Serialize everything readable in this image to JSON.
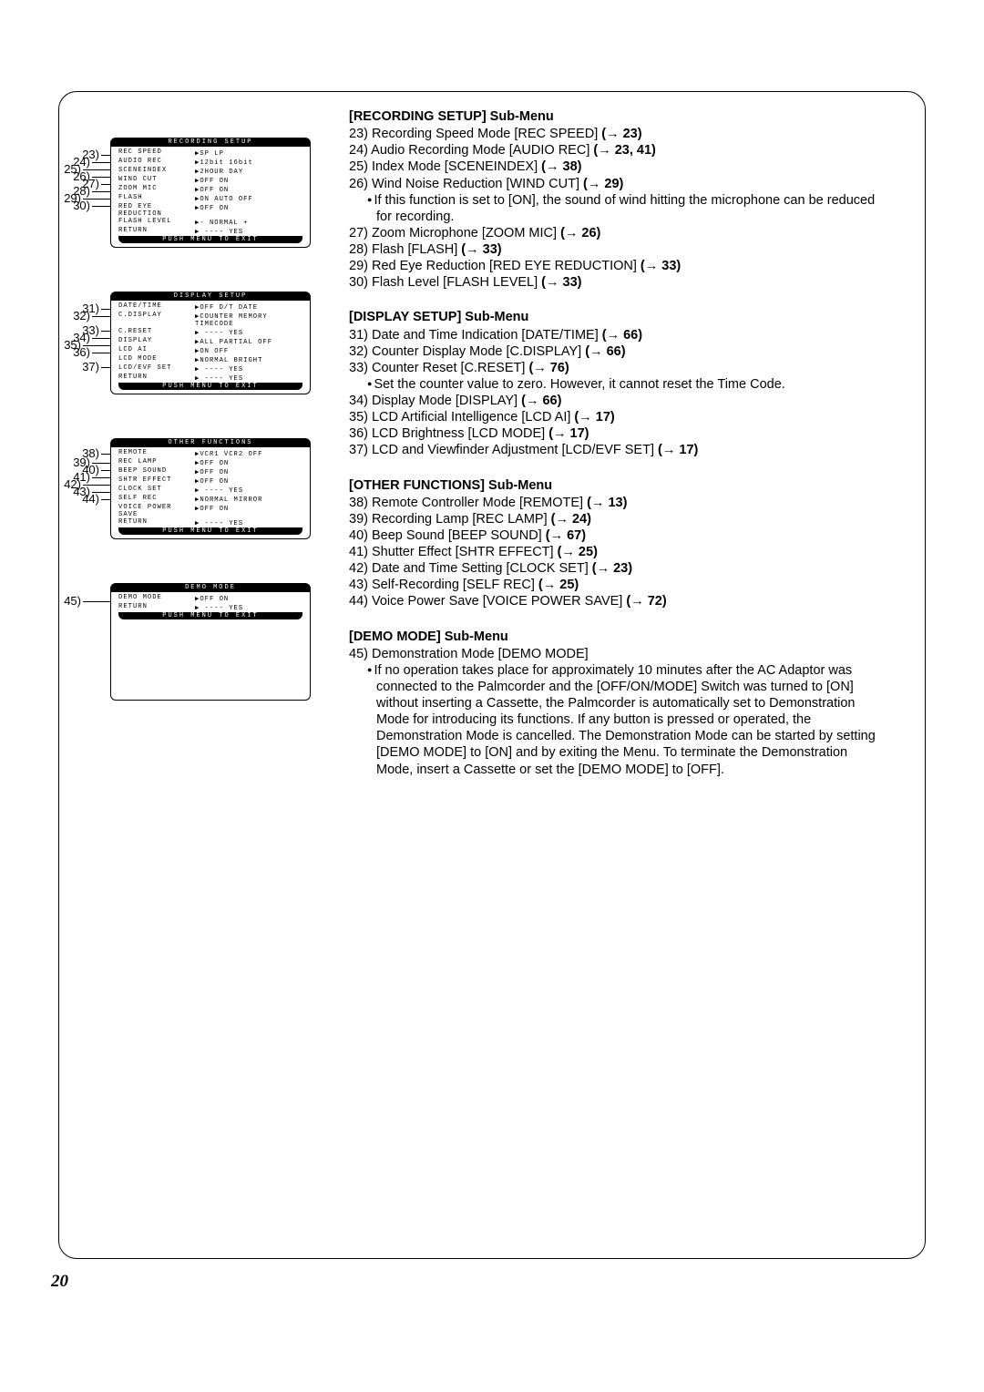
{
  "sections": [
    {
      "title": "[RECORDING SETUP] Sub-Menu",
      "items": [
        {
          "n": "23)",
          "t": "Recording Speed Mode [REC SPEED]",
          "r": "(→ 23)"
        },
        {
          "n": "24)",
          "t": "Audio Recording Mode [AUDIO REC]",
          "r": "(→ 23, 41)"
        },
        {
          "n": "25)",
          "t": "Index Mode [SCENEINDEX]",
          "r": "(→ 38)"
        },
        {
          "n": "26)",
          "t": "Wind Noise Reduction [WIND CUT]",
          "r": "(→ 29)",
          "sub": "If this function is set to [ON], the sound of wind hitting the microphone can be reduced for recording."
        },
        {
          "n": "27)",
          "t": "Zoom Microphone [ZOOM MIC]",
          "r": "(→ 26)"
        },
        {
          "n": "28)",
          "t": "Flash [FLASH]",
          "r": "(→ 33)"
        },
        {
          "n": "29)",
          "t": "Red Eye Reduction [RED EYE REDUCTION]",
          "r": "(→ 33)"
        },
        {
          "n": "30)",
          "t": "Flash Level [FLASH LEVEL]",
          "r": "(→ 33)"
        }
      ]
    },
    {
      "title": "[DISPLAY SETUP] Sub-Menu",
      "items": [
        {
          "n": "31)",
          "t": "Date and Time Indication [DATE/TIME]",
          "r": "(→ 66)"
        },
        {
          "n": "32)",
          "t": "Counter Display Mode [C.DISPLAY]",
          "r": "(→ 66)"
        },
        {
          "n": "33)",
          "t": "Counter Reset [C.RESET]",
          "r": "(→ 76)",
          "sub": "Set the counter value to zero. However, it cannot reset the Time Code."
        },
        {
          "n": "34)",
          "t": "Display Mode [DISPLAY]",
          "r": "(→ 66)"
        },
        {
          "n": "35)",
          "t": "LCD Artificial Intelligence [LCD AI]",
          "r": "(→ 17)"
        },
        {
          "n": "36)",
          "t": "LCD Brightness [LCD MODE]",
          "r": "(→ 17)"
        },
        {
          "n": "37)",
          "t": "LCD and Viewfinder Adjustment [LCD/EVF SET]",
          "r": "(→ 17)"
        }
      ]
    },
    {
      "title": "[OTHER FUNCTIONS] Sub-Menu",
      "items": [
        {
          "n": "38)",
          "t": "Remote Controller Mode [REMOTE]",
          "r": "(→ 13)"
        },
        {
          "n": "39)",
          "t": "Recording Lamp [REC LAMP]",
          "r": "(→ 24)"
        },
        {
          "n": "40)",
          "t": "Beep Sound [BEEP SOUND]",
          "r": "(→ 67)"
        },
        {
          "n": "41)",
          "t": "Shutter Effect [SHTR EFFECT]",
          "r": "(→ 25)"
        },
        {
          "n": "42)",
          "t": "Date and Time Setting [CLOCK SET]",
          "r": "(→ 23)"
        },
        {
          "n": "43)",
          "t": "Self-Recording [SELF REC]",
          "r": "(→ 25)"
        },
        {
          "n": "44)",
          "t": "Voice Power Save [VOICE POWER SAVE]",
          "r": "(→ 72)"
        }
      ]
    },
    {
      "title": "[DEMO MODE] Sub-Menu",
      "items": [
        {
          "n": "45)",
          "t": "Demonstration Mode [DEMO MODE]",
          "r": "",
          "sub": "If no operation takes place for approximately 10 minutes after the AC Adaptor was connected to the Palmcorder and the [OFF/ON/MODE] Switch was turned to [ON] without inserting a Cassette, the Palmcorder is automatically set to Demonstration Mode for introducing its functions. If any button is pressed or operated, the Demonstration Mode is cancelled. The Demonstration Mode can be started by setting [DEMO MODE] to [ON] and by exiting the Menu. To terminate the Demonstration Mode, insert a Cassette or set the [DEMO MODE] to [OFF]."
        }
      ]
    }
  ],
  "menus": [
    {
      "title": "RECORDING SETUP",
      "rows": [
        {
          "c1": "REC SPEED",
          "c3": "▶SP     LP"
        },
        {
          "c1": "AUDIO REC",
          "c3": "▶12bit  16bit"
        },
        {
          "c1": "SCENEINDEX",
          "c3": "▶2HOUR  DAY"
        },
        {
          "c1": "WIND CUT",
          "c3": "▶OFF    ON"
        },
        {
          "c1": "ZOOM MIC",
          "c3": "▶OFF    ON"
        },
        {
          "c1": "FLASH",
          "c3": "▶ON AUTO OFF"
        },
        {
          "c1": "RED EYE REDUCTION",
          "c3": "▶OFF ON"
        },
        {
          "c1": "FLASH LEVEL",
          "c3": "▶- NORMAL +"
        },
        {
          "c1": "RETURN",
          "c3": "▶ ---- YES"
        }
      ],
      "callouts": [
        "23)",
        "24)",
        "25)",
        "26)",
        "27)",
        "28)",
        "29)",
        "30)"
      ],
      "calloutTops": [
        3,
        11,
        19,
        27,
        35,
        43,
        51,
        59
      ],
      "lineW": [
        10,
        20,
        30,
        20,
        10,
        20,
        30,
        20
      ]
    },
    {
      "title": "DISPLAY SETUP",
      "rows": [
        {
          "c1": "DATE/TIME",
          "c3": "▶OFF D/T DATE"
        },
        {
          "c1": "C.DISPLAY",
          "c3": "▶COUNTER MEMORY"
        },
        {
          "c1": "",
          "c3": "   TIMECODE"
        },
        {
          "c1": "C.RESET",
          "c3": "▶ ---- YES"
        },
        {
          "c1": "DISPLAY",
          "c3": "▶ALL PARTIAL OFF"
        },
        {
          "c1": "LCD AI",
          "c3": "▶ON     OFF"
        },
        {
          "c1": "LCD MODE",
          "c3": "▶NORMAL BRIGHT"
        },
        {
          "c1": "LCD/EVF SET",
          "c3": "▶ ---- YES"
        },
        {
          "c1": "RETURN",
          "c3": "▶ ---- YES"
        }
      ],
      "callouts": [
        "31)",
        "32)",
        "33)",
        "34)",
        "35)",
        "36)",
        "37)"
      ],
      "calloutTops": [
        3,
        11,
        27,
        35,
        43,
        51,
        67
      ],
      "lineW": [
        10,
        20,
        10,
        20,
        30,
        20,
        10
      ]
    },
    {
      "title": "OTHER FUNCTIONS",
      "rows": [
        {
          "c1": "REMOTE",
          "c3": "▶VCR1 VCR2 OFF"
        },
        {
          "c1": "REC LAMP",
          "c3": "  ▶OFF   ON"
        },
        {
          "c1": "BEEP SOUND",
          "c3": "▶OFF   ON"
        },
        {
          "c1": "SHTR EFFECT",
          "c3": "▶OFF   ON"
        },
        {
          "c1": "CLOCK SET",
          "c3": "▶ ---- YES"
        },
        {
          "c1": "SELF REC",
          "c3": "▶NORMAL MIRROR"
        },
        {
          "c1": "VOICE POWER SAVE",
          "c3": "▶OFF ON"
        },
        {
          "c1": "",
          "c3": ""
        },
        {
          "c1": "RETURN",
          "c3": "▶ ---- YES"
        }
      ],
      "callouts": [
        "38)",
        "39)",
        "40)",
        "41)",
        "42)",
        "43)",
        "44)"
      ],
      "calloutTops": [
        1,
        11,
        19,
        27,
        35,
        43,
        51
      ],
      "lineW": [
        10,
        20,
        10,
        20,
        30,
        20,
        10
      ]
    },
    {
      "title": "DEMO MODE",
      "tall": true,
      "rows": [
        {
          "c1": "DEMO MODE",
          "c3": "▶OFF   ON"
        },
        {
          "c1": "",
          "c3": ""
        },
        {
          "c1": "",
          "c3": ""
        },
        {
          "c1": "",
          "c3": ""
        },
        {
          "c1": "",
          "c3": ""
        },
        {
          "c1": "",
          "c3": ""
        },
        {
          "c1": "",
          "c3": ""
        },
        {
          "c1": "",
          "c3": ""
        },
        {
          "c1": "",
          "c3": ""
        },
        {
          "c1": "",
          "c3": ""
        },
        {
          "c1": "",
          "c3": ""
        },
        {
          "c1": "RETURN",
          "c3": "▶ ---- YES"
        }
      ],
      "callouts": [
        "45)"
      ],
      "calloutTops": [
        4
      ],
      "lineW": [
        30
      ]
    }
  ],
  "footer": "PUSH MENU TO EXIT",
  "pagenum": "20"
}
